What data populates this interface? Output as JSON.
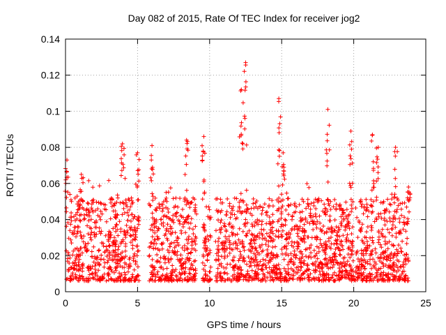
{
  "chart_data": {
    "type": "scatter",
    "title": "Day 082 of 2015, Rate Of TEC Index for receiver jog2",
    "xlabel": "GPS time / hours",
    "ylabel": "ROTI / TECUs",
    "xlim": [
      0,
      25
    ],
    "ylim": [
      0,
      0.14
    ],
    "xticks": [
      0,
      5,
      10,
      15,
      20,
      25
    ],
    "xtick_labels": [
      "0",
      "5",
      "10",
      "15",
      "20",
      "25"
    ],
    "yticks": [
      0,
      0.02,
      0.04,
      0.06,
      0.08,
      0.1,
      0.12,
      0.14
    ],
    "ytick_labels": [
      "0",
      "0.02",
      "0.04",
      "0.06",
      "0.08",
      "0.1",
      "0.12",
      "0.14"
    ],
    "grid": true,
    "marker": "+",
    "color": "#ff0000",
    "series": [
      {
        "name": "ROTI",
        "notes": "dense point cloud; baseline ~0.005-0.05 TECU with spikes",
        "gaps_hours": [
          [
            5.1,
            5.8
          ],
          [
            9.1,
            9.5
          ],
          [
            10.1,
            10.4
          ]
        ],
        "spikes": [
          {
            "x": 0.1,
            "y": 0.073
          },
          {
            "x": 1.1,
            "y": 0.065
          },
          {
            "x": 3.95,
            "y": 0.082
          },
          {
            "x": 5.0,
            "y": 0.077
          },
          {
            "x": 6.0,
            "y": 0.081
          },
          {
            "x": 8.4,
            "y": 0.084
          },
          {
            "x": 9.6,
            "y": 0.086
          },
          {
            "x": 12.2,
            "y": 0.112
          },
          {
            "x": 12.5,
            "y": 0.127
          },
          {
            "x": 14.8,
            "y": 0.107
          },
          {
            "x": 15.1,
            "y": 0.077
          },
          {
            "x": 18.2,
            "y": 0.101
          },
          {
            "x": 19.8,
            "y": 0.089
          },
          {
            "x": 21.3,
            "y": 0.087
          },
          {
            "x": 21.7,
            "y": 0.08
          },
          {
            "x": 22.9,
            "y": 0.08
          },
          {
            "x": 23.8,
            "y": 0.058
          }
        ]
      }
    ]
  }
}
